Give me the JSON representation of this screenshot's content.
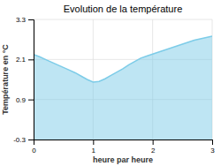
{
  "chart_data": {
    "type": "area",
    "title": "Evolution de la température",
    "x_label": "heure par heure",
    "y_label": "Température en °C",
    "x": [
      0.0,
      0.1,
      0.2,
      0.3,
      0.4,
      0.5,
      0.6,
      0.7,
      0.8,
      0.9,
      1.0,
      1.1,
      1.2,
      1.3,
      1.4,
      1.5,
      1.6,
      1.7,
      1.8,
      1.9,
      2.0,
      2.1,
      2.2,
      2.3,
      2.4,
      2.5,
      2.6,
      2.7,
      2.8,
      2.9,
      3.0
    ],
    "values": [
      2.25,
      2.18,
      2.1,
      2.02,
      1.94,
      1.86,
      1.78,
      1.7,
      1.6,
      1.5,
      1.42,
      1.44,
      1.52,
      1.62,
      1.72,
      1.82,
      1.94,
      2.04,
      2.14,
      2.2,
      2.26,
      2.32,
      2.38,
      2.44,
      2.5,
      2.56,
      2.62,
      2.68,
      2.72,
      2.76,
      2.8
    ],
    "color": "#7dcce8",
    "xlim": [
      0,
      3
    ],
    "xticks": [
      0,
      1,
      2,
      3
    ],
    "ylim": [
      -0.3,
      3.3
    ],
    "yticks": [
      -0.3,
      0.9,
      2.1,
      3.3
    ],
    "grid": true
  }
}
